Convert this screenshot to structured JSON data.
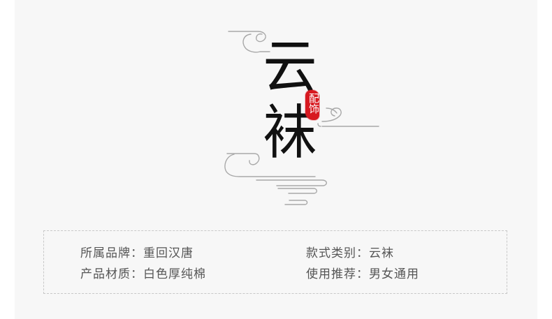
{
  "logo": {
    "title_char_1": "云",
    "title_char_2": "袜",
    "seal_text": "配饰",
    "cloud_line_color": "#a8a8a8",
    "seal_color": "#d71920"
  },
  "info": {
    "brand": "所属品牌：重回汉唐",
    "category": "款式类别：云袜",
    "material": "产品材质：白色厚纯棉",
    "recommended_for": "使用推荐：男女通用"
  }
}
